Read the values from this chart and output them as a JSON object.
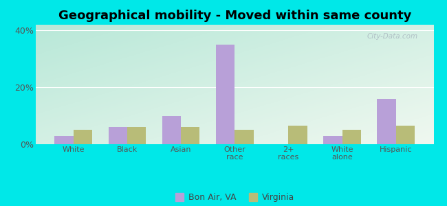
{
  "title": "Geographical mobility - Moved within same county",
  "categories": [
    "White",
    "Black",
    "Asian",
    "Other\nrace",
    "2+\nraces",
    "White\nalone",
    "Hispanic"
  ],
  "bon_air_values": [
    3,
    6,
    10,
    35,
    0,
    3,
    16
  ],
  "virginia_values": [
    5,
    6,
    6,
    5,
    6.5,
    5,
    6.5
  ],
  "bon_air_color": "#b8a0d8",
  "virginia_color": "#b8bc78",
  "title_fontsize": 13,
  "ylim": [
    0,
    42
  ],
  "yticks": [
    0,
    20,
    40
  ],
  "ytick_labels": [
    "0%",
    "20%",
    "40%"
  ],
  "bar_width": 0.35,
  "figure_bg": "#00e8e8",
  "plot_bg_topleft": "#b8e8d8",
  "plot_bg_topright": "#d8e8d0",
  "plot_bg_bottomleft": "#e0f0e0",
  "plot_bg_bottomright": "#f0f8f0",
  "legend_bon_air": "Bon Air, VA",
  "legend_virginia": "Virginia",
  "watermark": "City-Data.com"
}
